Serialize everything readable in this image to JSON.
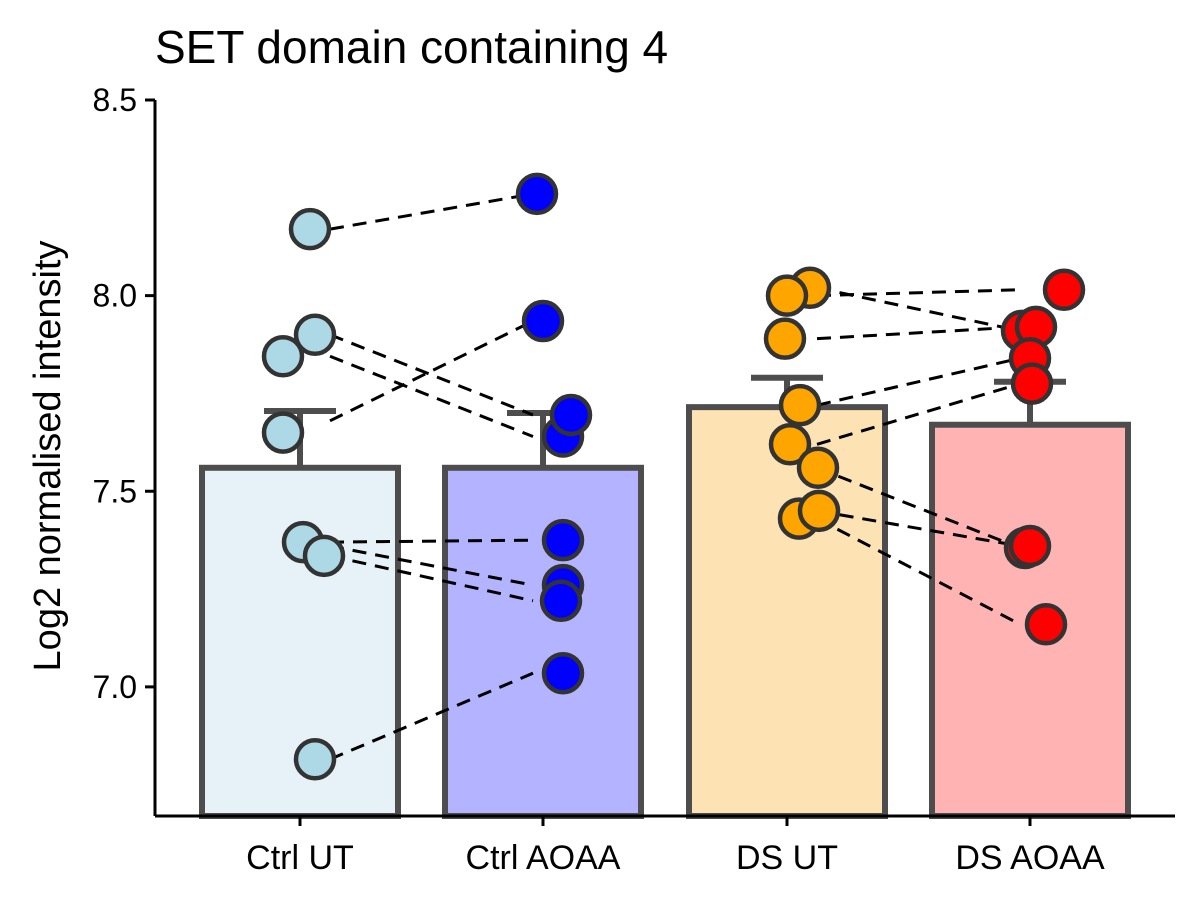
{
  "chart_data": {
    "type": "bar",
    "title": "SET domain containing 4",
    "xlabel": "",
    "ylabel": "Log2 normalised intensity",
    "ylim": [
      6.67,
      8.5
    ],
    "yticks": [
      7.0,
      7.5,
      8.0,
      8.5
    ],
    "ytick_labels": [
      "7.0",
      "7.5",
      "8.0",
      "8.5"
    ],
    "grid": false,
    "legend": "none",
    "categories": [
      "Ctrl UT",
      "Ctrl AOAA",
      "DS UT",
      "DS AOAA"
    ],
    "values": [
      7.56,
      7.56,
      7.715,
      7.67
    ],
    "error_upper": [
      7.705,
      7.7,
      7.79,
      7.78
    ],
    "bar_colors": [
      "#e6f1f8",
      "#b3b3ff",
      "#fde3b4",
      "#ffb3b3"
    ],
    "point_colors": [
      "#add8e6",
      "#0000ff",
      "#ffa500",
      "#ff0000"
    ],
    "points": [
      [
        8.17,
        7.9,
        7.845,
        7.65,
        7.37,
        7.335,
        6.815
      ],
      [
        8.26,
        7.935,
        7.64,
        7.695,
        7.375,
        7.26,
        7.22,
        7.035
      ],
      [
        8.02,
        8.0,
        7.89,
        7.72,
        7.62,
        7.56,
        7.43,
        7.45
      ],
      [
        8.015,
        7.91,
        7.92,
        7.84,
        7.775,
        7.355,
        7.36,
        7.16
      ]
    ],
    "pairs": [
      [
        8.17,
        8.26
      ],
      [
        7.68,
        7.935
      ],
      [
        7.9,
        7.695
      ],
      [
        7.845,
        7.64
      ],
      [
        7.37,
        7.375
      ],
      [
        7.335,
        7.22
      ],
      [
        7.36,
        7.26
      ],
      [
        6.815,
        7.035
      ],
      [
        8.02,
        7.91
      ],
      [
        8.0,
        8.015
      ],
      [
        7.89,
        7.92
      ],
      [
        7.72,
        7.84
      ],
      [
        7.62,
        7.775
      ],
      [
        7.56,
        7.355
      ],
      [
        7.43,
        7.16
      ],
      [
        7.45,
        7.36
      ]
    ]
  }
}
